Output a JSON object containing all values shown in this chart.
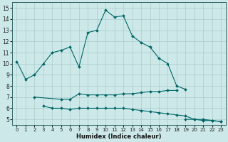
{
  "xlabel": "Humidex (Indice chaleur)",
  "background_color": "#cce8e8",
  "grid_color": "#aacccc",
  "line_color": "#006666",
  "xlim": [
    -0.5,
    23.5
  ],
  "ylim": [
    4.5,
    15.5
  ],
  "xticks": [
    0,
    1,
    2,
    3,
    4,
    5,
    6,
    7,
    8,
    9,
    10,
    11,
    12,
    13,
    14,
    15,
    16,
    17,
    18,
    19,
    20,
    21,
    22,
    23
  ],
  "yticks": [
    5,
    6,
    7,
    8,
    9,
    10,
    11,
    12,
    13,
    14,
    15
  ],
  "series": [
    {
      "x": [
        0,
        1,
        2,
        3,
        4,
        5,
        6,
        7,
        8,
        9,
        10,
        11,
        12,
        13,
        14,
        15,
        16,
        17,
        18,
        19
      ],
      "y": [
        10.2,
        8.6,
        9.0,
        10.0,
        11.0,
        11.2,
        11.5,
        9.7,
        12.8,
        13.0,
        14.8,
        14.2,
        14.3,
        12.5,
        11.9,
        11.5,
        10.5,
        10.0,
        8.0,
        7.7
      ]
    },
    {
      "x": [
        2,
        5,
        6,
        7,
        8,
        9,
        10,
        11,
        12,
        13,
        14,
        15,
        16,
        17,
        18
      ],
      "y": [
        7.0,
        6.8,
        6.8,
        7.3,
        7.2,
        7.2,
        7.2,
        7.2,
        7.3,
        7.3,
        7.4,
        7.5,
        7.5,
        7.6,
        7.6
      ]
    },
    {
      "x": [
        3,
        4,
        5,
        6,
        7,
        8,
        9,
        10,
        11,
        12,
        13,
        14,
        15,
        16,
        17,
        18,
        19,
        20,
        21,
        22,
        23
      ],
      "y": [
        6.2,
        6.0,
        6.0,
        5.9,
        6.0,
        6.0,
        6.0,
        6.0,
        6.0,
        6.0,
        5.9,
        5.8,
        5.7,
        5.6,
        5.5,
        5.4,
        5.3,
        5.0,
        5.0,
        4.9,
        4.8
      ]
    },
    {
      "x": [
        19,
        20,
        21,
        22,
        23
      ],
      "y": [
        5.0,
        5.0,
        4.9,
        4.9,
        4.8
      ]
    }
  ]
}
